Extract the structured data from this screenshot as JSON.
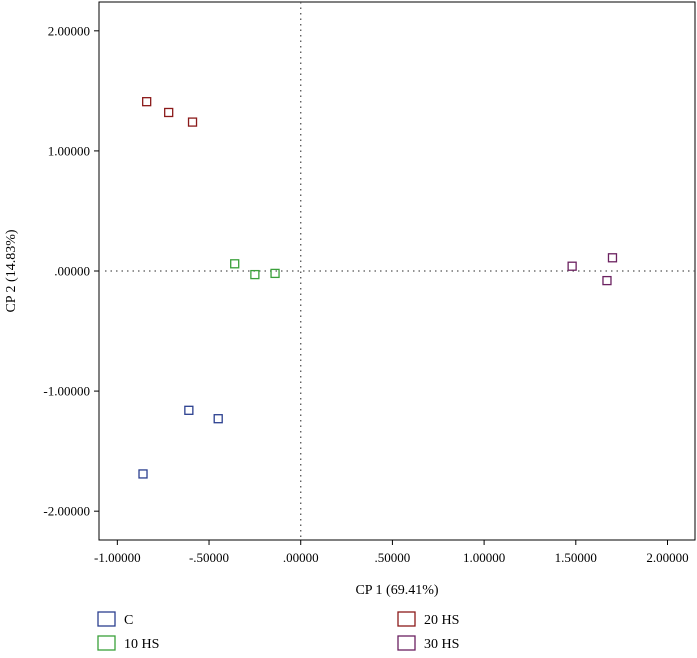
{
  "chart_data": {
    "type": "scatter",
    "xlabel": "CP 1 (69.41%)",
    "ylabel": "CP 2 (14.83%)",
    "xlim": [
      -1.1,
      2.15
    ],
    "ylim": [
      -2.24,
      2.24
    ],
    "x_ticks": [
      -1.0,
      -0.5,
      0.0,
      0.5,
      1.0,
      1.5,
      2.0
    ],
    "x_tick_labels": [
      "-1.00000",
      "-.50000",
      ".00000",
      ".50000",
      "1.00000",
      "1.50000",
      "2.00000"
    ],
    "y_ticks": [
      2.0,
      1.0,
      0.0,
      -1.0,
      -2.0
    ],
    "y_tick_labels": [
      "2.00000",
      "1.00000",
      ".00000",
      "-1.00000",
      "-2.00000"
    ],
    "reference_lines": {
      "x": 0,
      "y": 0,
      "style": "dotted"
    },
    "legend_position": "bottom",
    "series": [
      {
        "name": "C",
        "color": "#2b3f8f",
        "points": [
          [
            -0.86,
            -1.69
          ],
          [
            -0.61,
            -1.16
          ],
          [
            -0.45,
            -1.23
          ]
        ]
      },
      {
        "name": "10 HS",
        "color": "#3aa03a",
        "points": [
          [
            -0.36,
            0.06
          ],
          [
            -0.25,
            -0.03
          ],
          [
            -0.14,
            -0.02
          ]
        ]
      },
      {
        "name": "20 HS",
        "color": "#8b1a1a",
        "points": [
          [
            -0.84,
            1.41
          ],
          [
            -0.72,
            1.32
          ],
          [
            -0.59,
            1.24
          ]
        ]
      },
      {
        "name": "30 HS",
        "color": "#6b2160",
        "points": [
          [
            1.48,
            0.04
          ],
          [
            1.67,
            -0.08
          ],
          [
            1.7,
            0.11
          ]
        ]
      }
    ]
  }
}
